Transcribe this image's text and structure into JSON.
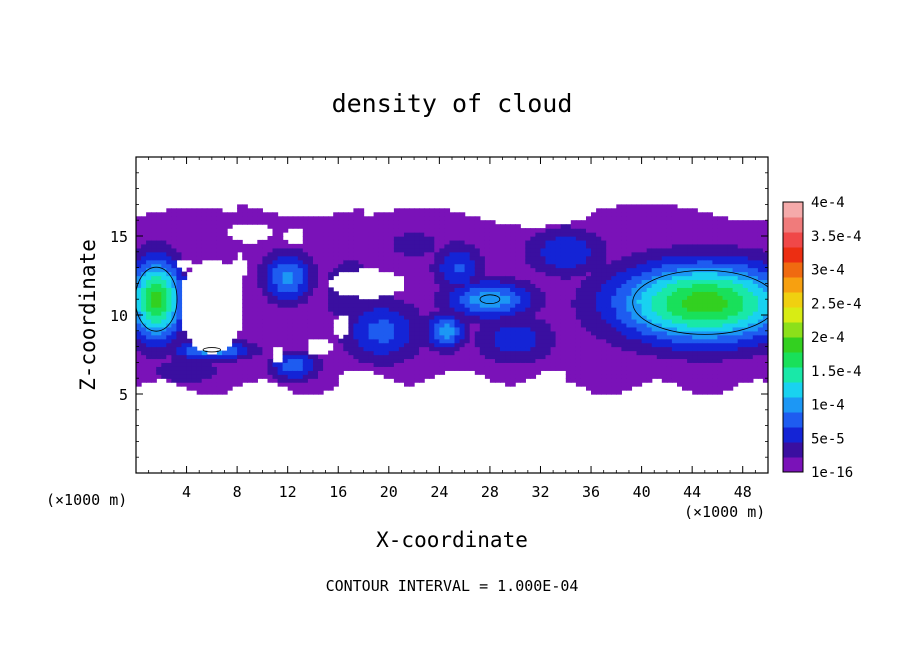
{
  "chart_data": {
    "type": "heatmap",
    "title": "density of cloud",
    "xlabel": "X-coordinate",
    "ylabel": "Z-coordinate",
    "x_unit_label": "(×1000 m)",
    "z_unit_label": "(×1000 m)",
    "footer": "CONTOUR INTERVAL = 1.000E-04",
    "xlim": [
      0,
      50
    ],
    "ylim": [
      0,
      20
    ],
    "xticks": [
      4,
      8,
      12,
      16,
      20,
      24,
      28,
      32,
      36,
      40,
      44,
      48
    ],
    "yticks": [
      5,
      10,
      15
    ],
    "colorbar": {
      "levels": [
        "1e-16",
        "5e-5",
        "1e-4",
        "1.5e-4",
        "2e-4",
        "2.5e-4",
        "3e-4",
        "3.5e-4",
        "4e-4"
      ],
      "colors": [
        "#7a12b8",
        "#3a0fa0",
        "#1424d6",
        "#1e5cf0",
        "#1c97f5",
        "#19d2f0",
        "#19e8a8",
        "#19e05a",
        "#33d020",
        "#8ce01a",
        "#d8ec14",
        "#f0d010",
        "#f7a010",
        "#f06a10",
        "#ec2e12",
        "#f04848",
        "#f07b7b",
        "#f5aaaa"
      ]
    },
    "contour_levels": [
      1e-16,
      0.0001
    ],
    "cloud_cells": [
      {
        "x": 1.6,
        "z": 11.0,
        "rx": 2.6,
        "rz": 3.2,
        "peak": 0.00019
      },
      {
        "x": 45.0,
        "z": 10.8,
        "rx": 9.0,
        "rz": 3.2,
        "peak": 0.00019
      },
      {
        "x": 28.0,
        "z": 11.0,
        "rx": 4.5,
        "rz": 1.6,
        "peak": 0.000105
      },
      {
        "x": 12.0,
        "z": 12.4,
        "rx": 2.5,
        "rz": 2.0,
        "peak": 9.5e-05
      },
      {
        "x": 6.0,
        "z": 7.8,
        "rx": 4.0,
        "rz": 0.8,
        "peak": 0.000105
      },
      {
        "x": 12.5,
        "z": 6.8,
        "rx": 2.5,
        "rz": 1.2,
        "peak": 8e-05
      },
      {
        "x": 19.5,
        "z": 9.0,
        "rx": 4.0,
        "rz": 2.5,
        "peak": 7.5e-05
      },
      {
        "x": 24.5,
        "z": 9.0,
        "rx": 2.0,
        "rz": 1.5,
        "peak": 0.0001
      },
      {
        "x": 25.5,
        "z": 13.0,
        "rx": 2.5,
        "rz": 2.0,
        "peak": 7e-05
      },
      {
        "x": 30.0,
        "z": 8.5,
        "rx": 4.0,
        "rz": 2.0,
        "peak": 6e-05
      },
      {
        "x": 22.0,
        "z": 14.5,
        "rx": 3.0,
        "rz": 1.5,
        "peak": 3.5e-05
      },
      {
        "x": 34.0,
        "z": 14.0,
        "rx": 4.0,
        "rz": 2.0,
        "peak": 6.5e-05
      },
      {
        "x": 4.0,
        "z": 6.5,
        "rx": 4.0,
        "rz": 1.2,
        "peak": 4e-05
      },
      {
        "x": 17.0,
        "z": 11.5,
        "rx": 3.0,
        "rz": 3.0,
        "peak": 4.5e-05
      }
    ],
    "cloud_extent": {
      "x": [
        0,
        50
      ],
      "z_bottom": 5.4,
      "z_top": 16.5
    },
    "gaps": [
      {
        "x": 6.0,
        "z": 10.6,
        "rx": 2.6,
        "rz": 3.0
      },
      {
        "x": 18.3,
        "z": 12.0,
        "rx": 3.0,
        "rz": 0.9
      },
      {
        "x": 9.0,
        "z": 15.2,
        "rx": 1.8,
        "rz": 0.6
      },
      {
        "x": 12.5,
        "z": 15.0,
        "rx": 0.8,
        "rz": 0.5
      },
      {
        "x": 16.3,
        "z": 9.3,
        "rx": 0.7,
        "rz": 0.7
      },
      {
        "x": 11.2,
        "z": 7.5,
        "rx": 0.6,
        "rz": 0.6
      },
      {
        "x": 3.8,
        "z": 13.2,
        "rx": 0.6,
        "rz": 0.4
      },
      {
        "x": 8.2,
        "z": 13.0,
        "rx": 0.5,
        "rz": 1.0
      },
      {
        "x": 14.5,
        "z": 8.0,
        "rx": 1.0,
        "rz": 0.6
      }
    ]
  }
}
